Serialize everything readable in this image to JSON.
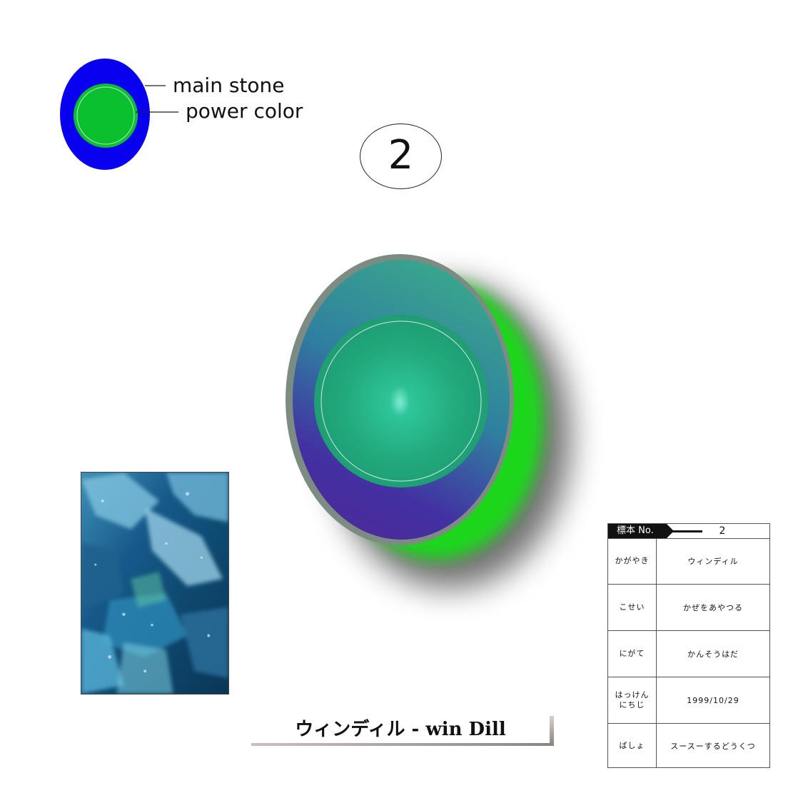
{
  "legend": {
    "main_stone_label": "main stone",
    "power_color_label": "power color",
    "main_stone_color": "#0a00f0",
    "power_color": "#0bc02f"
  },
  "specimen_number": "2",
  "stone": {
    "rim_color": "#7a8a80",
    "body_color_top": "#3aa58a",
    "body_color_bottom": "#4b2ea0",
    "core_color": "#22b07a",
    "glow_color": "#1ed61e"
  },
  "name_plate": {
    "text": "ウィンディル - win Dill"
  },
  "card": {
    "header_label": "標本 No.",
    "number": "2",
    "rows": [
      {
        "key": "かがやき",
        "value": "ウィンディル"
      },
      {
        "key": "こせい",
        "value": "かぜをあやつる"
      },
      {
        "key": "にがて",
        "value": "かんそうはだ"
      },
      {
        "key": "はっけん\nにちじ",
        "value": "1999/10/29"
      },
      {
        "key": "ばしょ",
        "value": "スースーするどうくつ"
      }
    ]
  }
}
